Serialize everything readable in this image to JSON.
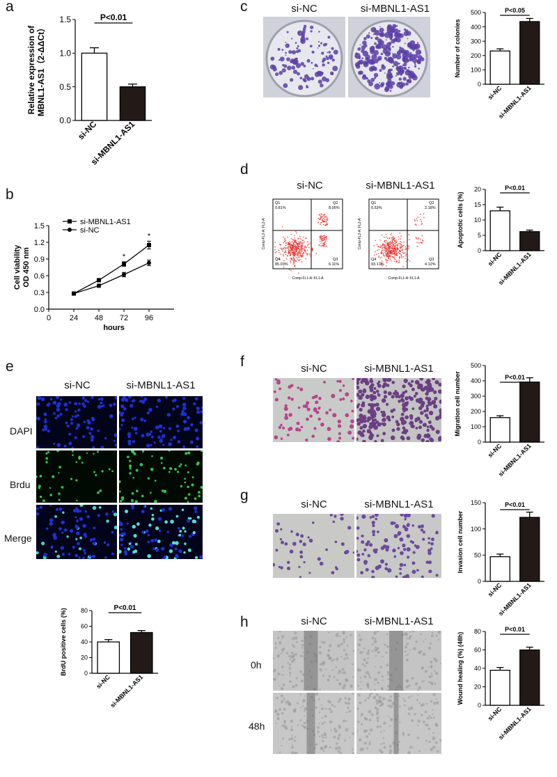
{
  "panels": {
    "a": {
      "letter": "a"
    },
    "b": {
      "letter": "b"
    },
    "c": {
      "letter": "c",
      "headers": [
        "si-NC",
        "si-MBNL1-AS1"
      ]
    },
    "d": {
      "letter": "d",
      "headers": [
        "si-NC",
        "si-MBNL1-AS1"
      ],
      "flow": [
        {
          "axis_y": "Comp-FL2-A::FL2-A",
          "axis_x": "Comp-FL1-A::FL1-A",
          "q1": "Q1",
          "q1v": "0.81%",
          "q2": "Q2",
          "q2v": "8.05%",
          "q3": "Q3",
          "q3v": "6.11%",
          "q4": "Q4",
          "q4v": "85.03%"
        },
        {
          "axis_y": "Comp-FL2-A::FL2-A",
          "axis_x": "Comp-FL1-A::FL1-A",
          "q1": "Q1",
          "q1v": "0.53%",
          "q2": "Q2",
          "q2v": "2.18%",
          "q3": "Q3",
          "q3v": "4.12%",
          "q4": "Q4",
          "q4v": "93.17%"
        }
      ]
    },
    "e": {
      "letter": "e",
      "headers": [
        "si-NC",
        "si-MBNL1-AS1"
      ],
      "rows": [
        "DAPI",
        "Brdu",
        "Merge"
      ]
    },
    "f": {
      "letter": "f",
      "headers": [
        "si-NC",
        "si-MBNL1-AS1"
      ]
    },
    "g": {
      "letter": "g",
      "headers": [
        "si-NC",
        "si-MBNL1-AS1"
      ]
    },
    "h": {
      "letter": "h",
      "headers": [
        "si-NC",
        "si-MBNL1-AS1"
      ],
      "rows": [
        "0h",
        "48h"
      ]
    }
  },
  "colors": {
    "bar_nc": "#ffffff",
    "bar_as1": "#231a17",
    "plate": "#5a3fa6",
    "dapi": "#1f2fd6",
    "brdu": "#37c24a",
    "flow": "#e8231f",
    "transwell_f": "#b8448c",
    "transwell_g": "#6a4a9e"
  },
  "chart_data": [
    {
      "id": "a",
      "type": "bar",
      "categories": [
        "si-NC",
        "si-MBNL1-AS1"
      ],
      "values": [
        1.0,
        0.5
      ],
      "errors": [
        0.08,
        0.04
      ],
      "ylabel": "Relative expression of MBNL1-AS1（2-ΔΔCt）",
      "ylim": [
        0,
        1.5
      ],
      "yticks": [
        "0.0",
        "0.5",
        "1.0",
        "1.5"
      ],
      "annotation": "P<0.01"
    },
    {
      "id": "b",
      "type": "line",
      "x": [
        24,
        48,
        72,
        96
      ],
      "xticks": [
        "0",
        "24",
        "48",
        "72",
        "96"
      ],
      "xlabel": "hours",
      "ylabel": "Cell viability OD 450 nm",
      "ylim": [
        0,
        1.5
      ],
      "yticks": [
        "0.0",
        "0.3",
        "0.6",
        "0.9",
        "1.2",
        "1.5"
      ],
      "series": [
        {
          "name": "si-MBNL1-AS1",
          "values": [
            0.28,
            0.52,
            0.81,
            1.15
          ],
          "errors": [
            0.01,
            0.03,
            0.04,
            0.07
          ],
          "marker": "square"
        },
        {
          "name": "si-NC",
          "values": [
            0.28,
            0.42,
            0.62,
            0.83
          ],
          "errors": [
            0.01,
            0.03,
            0.04,
            0.05
          ],
          "marker": "circle"
        }
      ],
      "annotations": [
        "*",
        "*"
      ]
    },
    {
      "id": "c",
      "type": "bar",
      "categories": [
        "si-NC",
        "si-MBNL1-AS1"
      ],
      "values": [
        232,
        437
      ],
      "errors": [
        15,
        22
      ],
      "ylabel": "Number of colonies",
      "ylim": [
        0,
        500
      ],
      "yticks": [
        "0",
        "100",
        "200",
        "300",
        "400",
        "500"
      ],
      "annotation": "P<0.05"
    },
    {
      "id": "d",
      "type": "bar",
      "categories": [
        "si-NC",
        "si-MBNL1-AS1"
      ],
      "values": [
        13,
        6.2
      ],
      "errors": [
        1.2,
        0.5
      ],
      "ylabel": "Apoptotic cells (%)",
      "ylim": [
        0,
        20
      ],
      "yticks": [
        "0",
        "5",
        "10",
        "15",
        "20"
      ],
      "annotation": "P<0.01"
    },
    {
      "id": "e",
      "type": "bar",
      "categories": [
        "si-NC",
        "si-MBNL1-AS1"
      ],
      "values": [
        40,
        52
      ],
      "errors": [
        3,
        2.5
      ],
      "ylabel": "BrdU positive cells (%)",
      "ylim": [
        0,
        80
      ],
      "yticks": [
        "0",
        "20",
        "40",
        "60",
        "80"
      ],
      "annotation": "P<0.01"
    },
    {
      "id": "f",
      "type": "bar",
      "categories": [
        "si-NC",
        "si-MBNL1-AS1"
      ],
      "values": [
        160,
        392
      ],
      "errors": [
        12,
        28
      ],
      "ylabel": "Migration cell number",
      "ylim": [
        0,
        500
      ],
      "yticks": [
        "0",
        "100",
        "200",
        "300",
        "400",
        "500"
      ],
      "annotation": "P<0.01"
    },
    {
      "id": "g",
      "type": "bar",
      "categories": [
        "si-NC",
        "si-MBNL1-AS1"
      ],
      "values": [
        47,
        122
      ],
      "errors": [
        5,
        10
      ],
      "ylabel": "Invasion cell number",
      "ylim": [
        0,
        150
      ],
      "yticks": [
        "0",
        "50",
        "100",
        "150"
      ],
      "annotation": "P<0.01"
    },
    {
      "id": "h",
      "type": "bar",
      "categories": [
        "si-NC",
        "si-MBNL1-AS1"
      ],
      "values": [
        38,
        60
      ],
      "errors": [
        3,
        3
      ],
      "ylabel": "Wound healing (%) (48h)",
      "ylim": [
        0,
        80
      ],
      "yticks": [
        "0",
        "20",
        "40",
        "60",
        "80"
      ],
      "annotation": "P<0.01"
    }
  ]
}
